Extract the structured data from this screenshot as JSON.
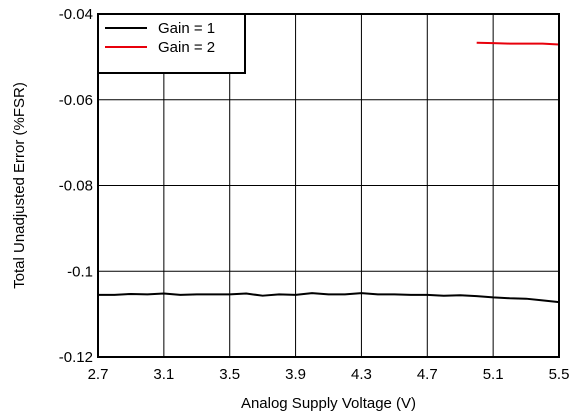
{
  "chart_data": {
    "type": "line",
    "xlabel": "Analog Supply Voltage (V)",
    "ylabel": "Total Unadjusted Error (%FSR)",
    "xlim": [
      2.7,
      5.5
    ],
    "ylim": [
      -0.12,
      -0.04
    ],
    "x_ticks": [
      "2.7",
      "3.1",
      "3.5",
      "3.9",
      "4.3",
      "4.7",
      "5.1",
      "5.5"
    ],
    "y_ticks": [
      "-0.04",
      "-0.06",
      "-0.08",
      "-0.1",
      "-0.12"
    ],
    "grid": true,
    "legend_position": "top-left",
    "series": [
      {
        "name": "Gain = 1",
        "color": "#000000",
        "x": [
          2.7,
          2.8,
          2.9,
          3.0,
          3.1,
          3.2,
          3.3,
          3.4,
          3.5,
          3.6,
          3.7,
          3.8,
          3.9,
          4.0,
          4.1,
          4.2,
          4.3,
          4.4,
          4.5,
          4.6,
          4.7,
          4.8,
          4.9,
          5.0,
          5.1,
          5.2,
          5.3,
          5.4,
          5.5
        ],
        "y": [
          -0.1055,
          -0.1055,
          -0.1053,
          -0.1054,
          -0.1052,
          -0.1055,
          -0.1054,
          -0.1054,
          -0.1054,
          -0.1052,
          -0.1057,
          -0.1054,
          -0.1055,
          -0.1051,
          -0.1054,
          -0.1054,
          -0.1051,
          -0.1054,
          -0.1054,
          -0.1055,
          -0.1055,
          -0.1057,
          -0.1056,
          -0.1058,
          -0.1061,
          -0.1063,
          -0.1064,
          -0.1068,
          -0.1072
        ]
      },
      {
        "name": "Gain = 2",
        "color": "#e8000b",
        "x": [
          5.0,
          5.1,
          5.2,
          5.3,
          5.4,
          5.5
        ],
        "y": [
          -0.0467,
          -0.0468,
          -0.0469,
          -0.0469,
          -0.0469,
          -0.0471
        ]
      }
    ]
  }
}
